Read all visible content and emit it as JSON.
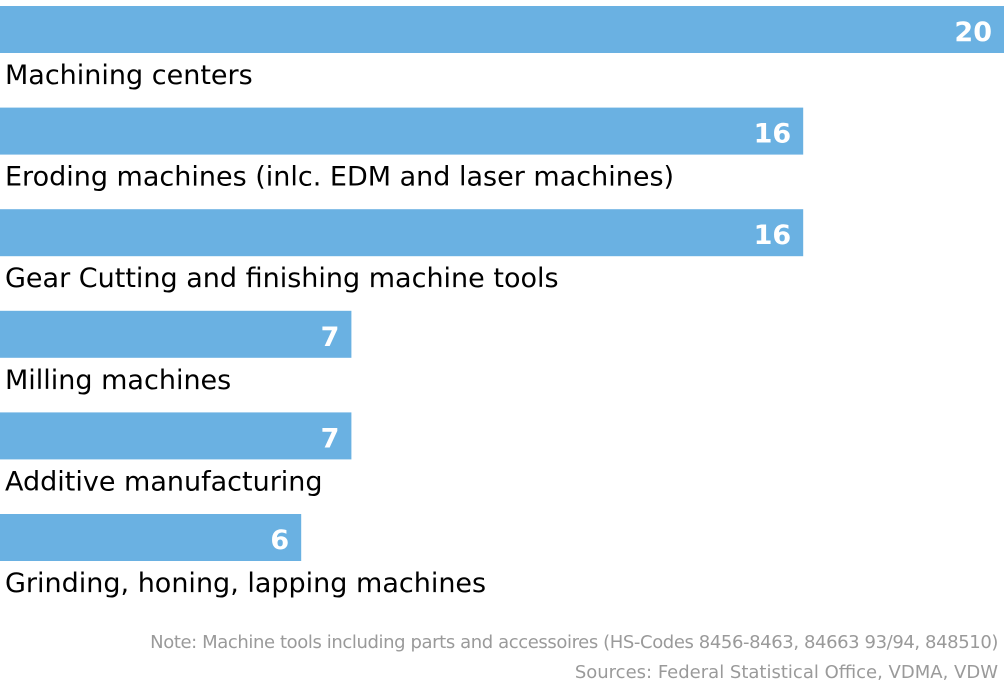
{
  "colors": {
    "bar": "#6ab1e2",
    "bar_value_text": "#ffffff",
    "label_text": "#000000",
    "note_text": "#9a9a9a",
    "background": "#ffffff"
  },
  "chart_data": {
    "type": "bar",
    "orientation": "horizontal",
    "categories": [
      "Machining centers",
      "Eroding machines (inlc. EDM and laser machines)",
      "Gear Cutting and finishing machine tools",
      "Milling machines",
      "Additive manufacturing",
      "Grinding, honing, lapping machines"
    ],
    "values": [
      20,
      16,
      16,
      7,
      7,
      6
    ],
    "value_labels": [
      "20",
      "16",
      "16",
      "7",
      "7",
      "6"
    ],
    "xlim": [
      0,
      20
    ],
    "grid": false,
    "legend": "none"
  },
  "footnotes": {
    "note": "Note: Machine tools including parts and accessoires (HS-Codes 8456-8463, 84663 93/94, 848510)",
    "sources": "Sources: Federal Statistical Office, VDMA, VDW"
  }
}
